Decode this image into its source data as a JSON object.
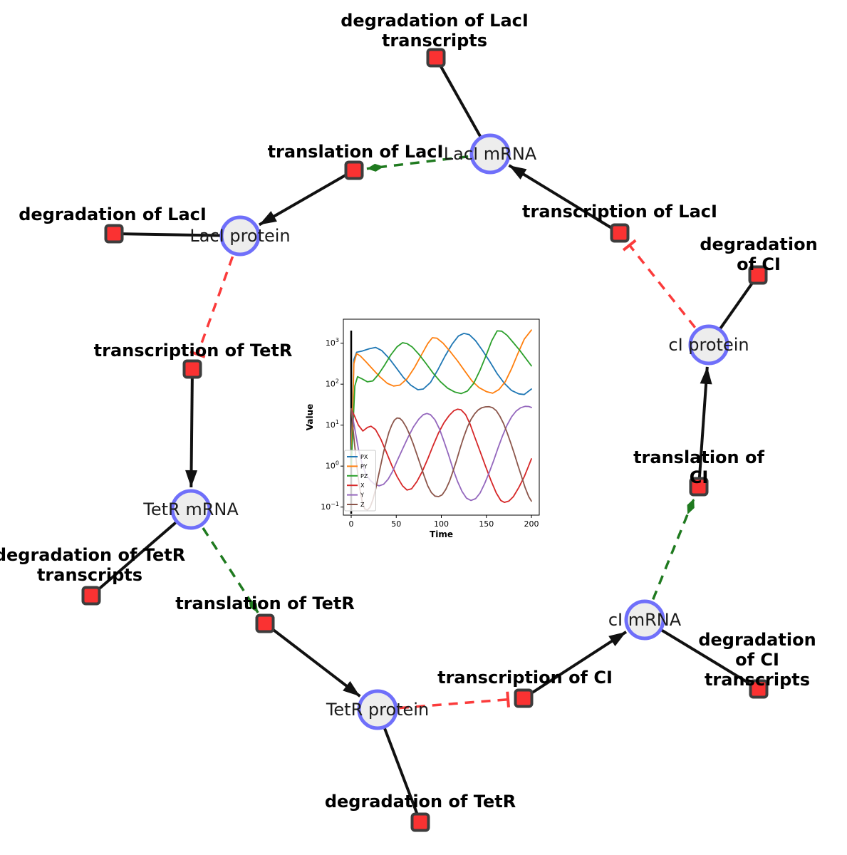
{
  "network": {
    "species": [
      {
        "label": "LacI mRNA"
      },
      {
        "label": "LacI protein"
      },
      {
        "label": "cI protein"
      },
      {
        "label": "TetR mRNA"
      },
      {
        "label": "cI mRNA"
      },
      {
        "label": "TetR protein"
      }
    ],
    "reactions": [
      {
        "label": "degradation of LacI\ntranscripts"
      },
      {
        "label": "translation of LacI"
      },
      {
        "label": "transcription of LacI"
      },
      {
        "label": "degradation of LacI"
      },
      {
        "label": "degradation of CI"
      },
      {
        "label": "transcription of TetR"
      },
      {
        "label": "translation of CI"
      },
      {
        "label": "degradation of TetR\ntranscripts"
      },
      {
        "label": "translation of TetR"
      },
      {
        "label": "degradation of CI\ntranscripts"
      },
      {
        "label": "transcription of CI"
      },
      {
        "label": "degradation of TetR"
      }
    ],
    "colors": {
      "species_fill": "#ededed",
      "species_border": "#6f6ffa",
      "reaction_fill": "#fa3232",
      "reaction_border": "#3d3d3d",
      "production_edge": "#111111",
      "inhibition_edge": "#fb3b3b",
      "modifier_edge": "#1f7a1f"
    }
  },
  "chart_data": {
    "type": "line",
    "title": "",
    "xlabel": "Time",
    "ylabel": "Value",
    "yscale": "log",
    "grid": false,
    "legend_position": "lower left",
    "xticks": [
      0,
      50,
      100,
      150,
      200
    ],
    "ytick_exponents": [
      3,
      2,
      1,
      0,
      -1
    ],
    "xlim": [
      -8.7,
      208.7
    ],
    "ylim": [
      0.0635,
      3855
    ],
    "t0_vline": 0,
    "series": [
      {
        "name": "PX",
        "color": "#1f77b4",
        "points": [
          [
            0,
            2
          ],
          [
            3,
            400
          ],
          [
            6,
            600
          ],
          [
            12,
            640
          ],
          [
            20,
            730
          ],
          [
            27,
            790
          ],
          [
            34,
            660
          ],
          [
            42,
            430
          ],
          [
            50,
            250
          ],
          [
            58,
            145
          ],
          [
            66,
            95
          ],
          [
            74,
            73
          ],
          [
            80,
            76
          ],
          [
            88,
            110
          ],
          [
            96,
            220
          ],
          [
            104,
            480
          ],
          [
            112,
            950
          ],
          [
            119,
            1500
          ],
          [
            125,
            1740
          ],
          [
            131,
            1620
          ],
          [
            138,
            1150
          ],
          [
            146,
            650
          ],
          [
            154,
            350
          ],
          [
            162,
            180
          ],
          [
            170,
            105
          ],
          [
            178,
            70
          ],
          [
            186,
            58
          ],
          [
            192,
            56
          ],
          [
            200,
            76
          ]
        ]
      },
      {
        "name": "PY",
        "color": "#ff7f0e",
        "points": [
          [
            0,
            1
          ],
          [
            3,
            320
          ],
          [
            6,
            555
          ],
          [
            10,
            490
          ],
          [
            16,
            360
          ],
          [
            24,
            230
          ],
          [
            32,
            150
          ],
          [
            40,
            105
          ],
          [
            47,
            90
          ],
          [
            54,
            95
          ],
          [
            62,
            135
          ],
          [
            70,
            250
          ],
          [
            78,
            520
          ],
          [
            85,
            980
          ],
          [
            90,
            1360
          ],
          [
            95,
            1330
          ],
          [
            102,
            1000
          ],
          [
            110,
            620
          ],
          [
            118,
            370
          ],
          [
            126,
            210
          ],
          [
            134,
            120
          ],
          [
            142,
            82
          ],
          [
            150,
            66
          ],
          [
            157,
            60
          ],
          [
            164,
            74
          ],
          [
            171,
            115
          ],
          [
            178,
            240
          ],
          [
            185,
            560
          ],
          [
            192,
            1250
          ],
          [
            200,
            2100
          ]
        ]
      },
      {
        "name": "PZ",
        "color": "#2ca02c",
        "points": [
          [
            0,
            1
          ],
          [
            4,
            90
          ],
          [
            7,
            152
          ],
          [
            12,
            135
          ],
          [
            18,
            114
          ],
          [
            24,
            120
          ],
          [
            30,
            170
          ],
          [
            37,
            290
          ],
          [
            44,
            520
          ],
          [
            51,
            820
          ],
          [
            57,
            1030
          ],
          [
            62,
            980
          ],
          [
            68,
            800
          ],
          [
            75,
            540
          ],
          [
            83,
            320
          ],
          [
            91,
            185
          ],
          [
            99,
            115
          ],
          [
            107,
            80
          ],
          [
            115,
            64
          ],
          [
            122,
            59
          ],
          [
            129,
            68
          ],
          [
            136,
            105
          ],
          [
            143,
            220
          ],
          [
            150,
            520
          ],
          [
            156,
            1150
          ],
          [
            162,
            2000
          ],
          [
            167,
            1970
          ],
          [
            173,
            1560
          ],
          [
            180,
            1030
          ],
          [
            187,
            670
          ],
          [
            194,
            420
          ],
          [
            200,
            280
          ]
        ]
      },
      {
        "name": "X",
        "color": "#d62728",
        "points": [
          [
            0,
            25
          ],
          [
            4,
            16
          ],
          [
            8,
            10
          ],
          [
            13,
            7.2
          ],
          [
            18,
            8.8
          ],
          [
            22,
            9.4
          ],
          [
            27,
            7.8
          ],
          [
            33,
            4.5
          ],
          [
            39,
            2.2
          ],
          [
            45,
            1.05
          ],
          [
            51,
            0.55
          ],
          [
            57,
            0.33
          ],
          [
            62,
            0.26
          ],
          [
            67,
            0.28
          ],
          [
            73,
            0.42
          ],
          [
            79,
            0.75
          ],
          [
            85,
            1.5
          ],
          [
            91,
            3.2
          ],
          [
            97,
            6.5
          ],
          [
            103,
            11.5
          ],
          [
            109,
            17.5
          ],
          [
            114,
            22.5
          ],
          [
            118,
            24.5
          ],
          [
            122,
            23.5
          ],
          [
            127,
            18
          ],
          [
            132,
            10.5
          ],
          [
            137,
            5.2
          ],
          [
            143,
            2.3
          ],
          [
            149,
            1.0
          ],
          [
            155,
            0.45
          ],
          [
            161,
            0.22
          ],
          [
            166,
            0.145
          ],
          [
            170,
            0.13
          ],
          [
            175,
            0.14
          ],
          [
            180,
            0.18
          ],
          [
            186,
            0.3
          ],
          [
            192,
            0.55
          ],
          [
            196,
            0.9
          ],
          [
            200,
            1.5
          ]
        ]
      },
      {
        "name": "Y",
        "color": "#9467bd",
        "points": [
          [
            0,
            25
          ],
          [
            4,
            8
          ],
          [
            8,
            2.6
          ],
          [
            12,
            1.15
          ],
          [
            16,
            0.66
          ],
          [
            21,
            0.45
          ],
          [
            26,
            0.36
          ],
          [
            31,
            0.33
          ],
          [
            36,
            0.36
          ],
          [
            41,
            0.48
          ],
          [
            46,
            0.75
          ],
          [
            51,
            1.35
          ],
          [
            57,
            2.6
          ],
          [
            63,
            5
          ],
          [
            69,
            9
          ],
          [
            75,
            14
          ],
          [
            80,
            18
          ],
          [
            84,
            19.3
          ],
          [
            88,
            18
          ],
          [
            93,
            13.5
          ],
          [
            98,
            8
          ],
          [
            103,
            4
          ],
          [
            108,
            1.9
          ],
          [
            113,
            0.85
          ],
          [
            118,
            0.42
          ],
          [
            123,
            0.24
          ],
          [
            128,
            0.165
          ],
          [
            133,
            0.145
          ],
          [
            138,
            0.16
          ],
          [
            143,
            0.22
          ],
          [
            148,
            0.37
          ],
          [
            153,
            0.68
          ],
          [
            158,
            1.35
          ],
          [
            163,
            2.8
          ],
          [
            168,
            5.5
          ],
          [
            173,
            10
          ],
          [
            178,
            16
          ],
          [
            183,
            22
          ],
          [
            188,
            26.5
          ],
          [
            193,
            28.8
          ],
          [
            197,
            28.5
          ],
          [
            200,
            27
          ]
        ]
      },
      {
        "name": "Z",
        "color": "#8c564b",
        "points": [
          [
            0,
            25
          ],
          [
            3,
            5
          ],
          [
            6,
            1.1
          ],
          [
            9,
            0.33
          ],
          [
            12,
            0.14
          ],
          [
            15,
            0.09
          ],
          [
            18,
            0.085
          ],
          [
            21,
            0.1
          ],
          [
            24,
            0.15
          ],
          [
            27,
            0.27
          ],
          [
            30,
            0.55
          ],
          [
            33,
            1.1
          ],
          [
            36,
            2.2
          ],
          [
            39,
            4
          ],
          [
            42,
            6.8
          ],
          [
            45,
            10
          ],
          [
            48,
            13.3
          ],
          [
            51,
            15
          ],
          [
            54,
            14.6
          ],
          [
            57,
            12.6
          ],
          [
            61,
            9
          ],
          [
            65,
            5.8
          ],
          [
            69,
            3.4
          ],
          [
            73,
            1.9
          ],
          [
            77,
            1.05
          ],
          [
            81,
            0.57
          ],
          [
            85,
            0.33
          ],
          [
            89,
            0.225
          ],
          [
            93,
            0.185
          ],
          [
            97,
            0.18
          ],
          [
            101,
            0.2
          ],
          [
            105,
            0.27
          ],
          [
            109,
            0.42
          ],
          [
            113,
            0.75
          ],
          [
            117,
            1.4
          ],
          [
            121,
            2.8
          ],
          [
            125,
            5.2
          ],
          [
            129,
            9
          ],
          [
            133,
            13.8
          ],
          [
            137,
            19
          ],
          [
            141,
            23.5
          ],
          [
            145,
            26.6
          ],
          [
            149,
            28
          ],
          [
            153,
            28.2
          ],
          [
            157,
            26.5
          ],
          [
            161,
            22.5
          ],
          [
            165,
            16.5
          ],
          [
            169,
            11
          ],
          [
            173,
            6.6
          ],
          [
            177,
            3.7
          ],
          [
            181,
            2
          ],
          [
            185,
            1.05
          ],
          [
            189,
            0.56
          ],
          [
            193,
            0.3
          ],
          [
            197,
            0.18
          ],
          [
            200,
            0.14
          ]
        ]
      }
    ]
  }
}
